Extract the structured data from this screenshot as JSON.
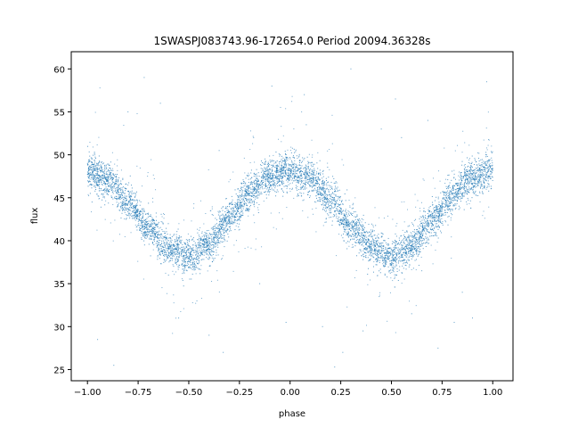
{
  "chart_data": {
    "type": "scatter",
    "title": "1SWASPJ083743.96-172654.0 Period 20094.36328s",
    "xlabel": "phase",
    "ylabel": "flux",
    "xlim": [
      -1.08,
      1.1
    ],
    "ylim": [
      23.7,
      62.0
    ],
    "xticks": [
      -1.0,
      -0.75,
      -0.5,
      -0.25,
      0.0,
      0.25,
      0.5,
      0.75,
      1.0
    ],
    "xtick_labels": [
      "−1.00",
      "−0.75",
      "−0.50",
      "−0.25",
      "0.00",
      "0.25",
      "0.50",
      "0.75",
      "1.00"
    ],
    "yticks": [
      25,
      30,
      35,
      40,
      45,
      50,
      55,
      60
    ],
    "ytick_labels": [
      "25",
      "30",
      "35",
      "40",
      "45",
      "50",
      "55",
      "60"
    ],
    "grid": false,
    "legend": "none",
    "marker_color": "#1f77b4",
    "series": [
      {
        "description": "folded light curve, dense band of points",
        "x": [
          -1.0,
          -0.9,
          -0.8,
          -0.7,
          -0.6,
          -0.5,
          -0.4,
          -0.3,
          -0.2,
          -0.1,
          0.0,
          0.1,
          0.2,
          0.3,
          0.4,
          0.5,
          0.6,
          0.7,
          0.8,
          0.9,
          1.0
        ],
        "y": [
          48.2,
          47.0,
          44.5,
          41.5,
          39.2,
          38.0,
          39.5,
          42.5,
          45.5,
          47.5,
          48.2,
          47.2,
          44.8,
          41.8,
          39.3,
          38.0,
          39.4,
          42.3,
          45.3,
          47.3,
          48.2
        ],
        "band_halfwidth": 1.2,
        "n_points": 6000
      },
      {
        "description": "sparse outliers",
        "x": [
          -0.95,
          -0.87,
          -0.8,
          -0.72,
          -0.64,
          -0.55,
          -0.46,
          -0.4,
          -0.33,
          -0.18,
          -0.09,
          -0.02,
          0.07,
          0.16,
          0.26,
          0.3,
          0.36,
          0.44,
          0.52,
          0.6,
          0.68,
          0.73,
          0.81,
          0.9,
          0.97,
          -0.6,
          -0.15,
          0.08,
          0.22,
          0.55,
          0.65,
          0.85,
          -0.35,
          0.45
        ],
        "y": [
          28.5,
          25.5,
          55.0,
          59.0,
          56.0,
          31.0,
          33.0,
          29.0,
          27.0,
          52.0,
          58.0,
          30.5,
          57.0,
          30.0,
          27.0,
          60.0,
          29.5,
          33.5,
          56.5,
          31.5,
          54.0,
          27.5,
          30.5,
          31.0,
          58.5,
          36.0,
          35.0,
          53.5,
          25.3,
          52.0,
          36.5,
          34.0,
          50.5,
          53.0
        ]
      }
    ]
  }
}
